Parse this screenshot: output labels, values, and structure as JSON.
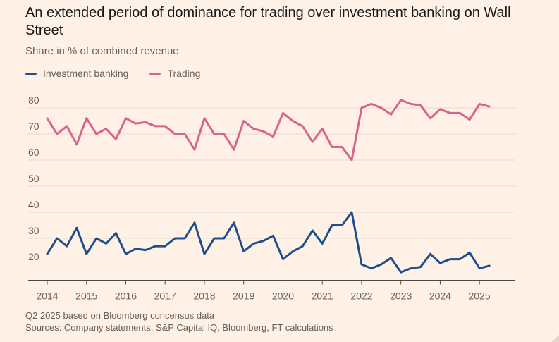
{
  "header": {
    "title": "An extended period of dominance for trading over investment banking on Wall Street",
    "subtitle": "Share in % of combined revenue"
  },
  "footer": {
    "note": "Q2 2025 based on Bloomberg concensus data",
    "sources": "Sources: Company statements, S&P Capital IQ, Bloomberg, FT calculations"
  },
  "colors": {
    "background": "#FFF1E5",
    "investment_banking": "#1F4E8C",
    "trading": "#D9638C",
    "gridline": "#E6D9CE",
    "baseline": "#4D4845"
  },
  "chart_data": {
    "type": "line",
    "title": "An extended period of dominance for trading over investment banking on Wall Street",
    "ylabel": "Share in % of combined revenue",
    "xlabel": "",
    "x_unit": "quarter",
    "x_start": "2014 Q1",
    "ylim": [
      15,
      85
    ],
    "yticks": [
      20,
      30,
      40,
      50,
      60,
      70,
      80
    ],
    "xticks": [
      "2014",
      "2015",
      "2016",
      "2017",
      "2018",
      "2019",
      "2020",
      "2021",
      "2022",
      "2023",
      "2024",
      "2025"
    ],
    "grid": true,
    "legend": "top-left",
    "series": [
      {
        "name": "Investment banking",
        "color": "#1F4E8C",
        "values": [
          24,
          30,
          27,
          34,
          24,
          30,
          28,
          32,
          24,
          26,
          25.5,
          27,
          27,
          30,
          30,
          36,
          24,
          30,
          30,
          36,
          25,
          28,
          29,
          31,
          22,
          25,
          27,
          33,
          28,
          35,
          35,
          40,
          20,
          18.5,
          20,
          22.5,
          17,
          18.5,
          19,
          24,
          20.5,
          22,
          22,
          24.5,
          18.5,
          19.5
        ]
      },
      {
        "name": "Trading",
        "color": "#D9638C",
        "values": [
          76,
          70,
          73,
          66,
          76,
          70,
          72,
          68,
          76,
          74,
          74.5,
          73,
          73,
          70,
          70,
          64,
          76,
          70,
          70,
          64,
          75,
          72,
          71,
          69,
          78,
          75,
          73,
          67,
          72,
          65,
          65,
          60,
          80,
          81.5,
          80,
          77.5,
          83,
          81.5,
          81,
          76,
          79.5,
          78,
          78,
          75.5,
          81.5,
          80.5
        ]
      }
    ]
  }
}
